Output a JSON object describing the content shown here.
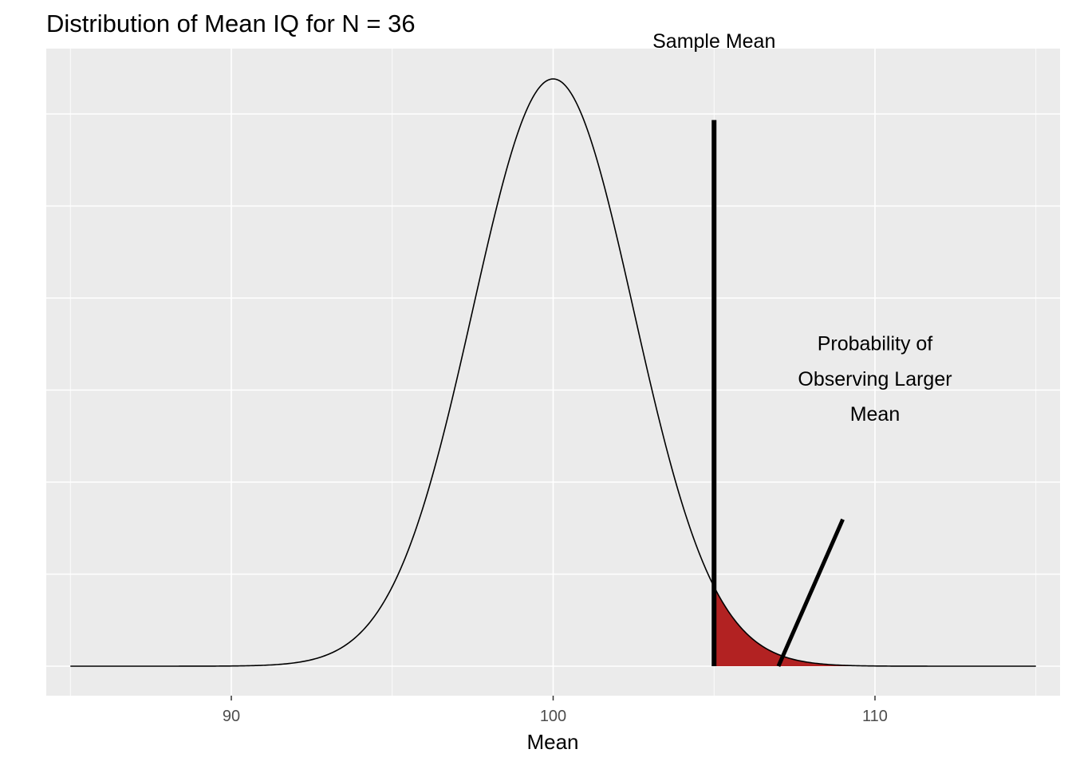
{
  "chart_data": {
    "type": "area",
    "title": "Distribution of Mean IQ for N = 36",
    "xlabel": "Mean",
    "ylabel": "",
    "xlim": [
      84.25,
      115.75
    ],
    "x_range": [
      85,
      115
    ],
    "x_ticks": [
      90,
      100,
      110
    ],
    "x_tick_labels": [
      "90",
      "100",
      "110"
    ],
    "distribution": {
      "kind": "normal",
      "mean": 100,
      "sd": 2.5
    },
    "shaded_region": {
      "from": 105,
      "to": 115,
      "color": "#b22222",
      "label": "Probability of Observing Larger Mean"
    },
    "sample_mean": 105,
    "annotations": [
      {
        "id": "sample_mean_label",
        "text": "Sample Mean",
        "x": 105,
        "y_fraction": 1.065
      },
      {
        "id": "probability_line1",
        "text": "Probability of",
        "x": 110.0,
        "y_fraction": 0.55
      },
      {
        "id": "probability_line2",
        "text": "Observing Larger",
        "x": 110.0,
        "y_fraction": 0.49
      },
      {
        "id": "probability_line3",
        "text": "Mean",
        "x": 110.0,
        "y_fraction": 0.43
      }
    ],
    "pointer_line": {
      "x_start": 107,
      "y_fraction_start": 0.0,
      "x_end": 109,
      "y_fraction_end": 0.25
    },
    "sample_mean_line": {
      "x": 105,
      "y_fraction_top": 0.93
    },
    "grid": true,
    "panel_color": "#ebebeb",
    "grid_color": "#ffffff"
  }
}
